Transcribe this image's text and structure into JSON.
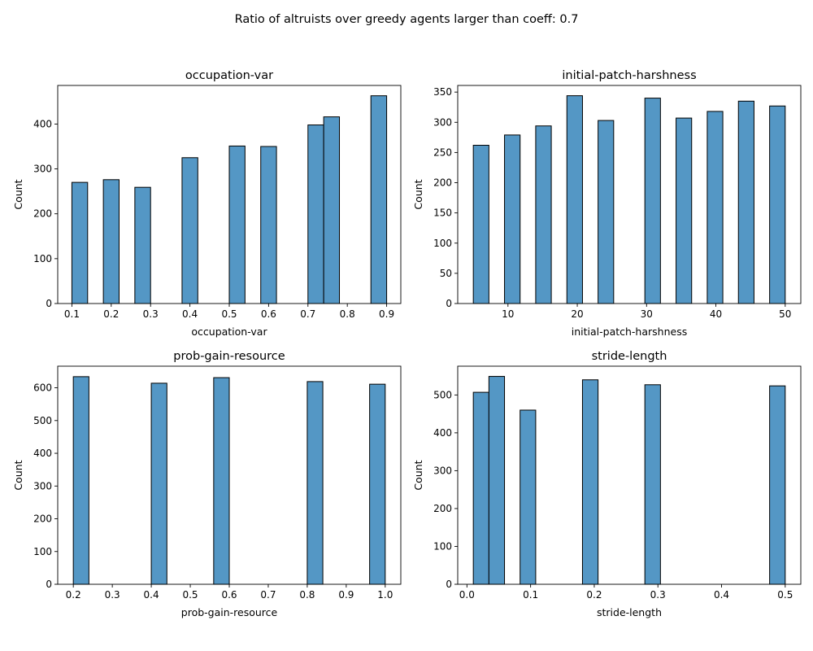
{
  "figure": {
    "suptitle": "Ratio of altruists over greedy agents larger than coeff: 0.7"
  },
  "bar_color": "#5497c5",
  "edge_color": "#000000",
  "chart_data": [
    {
      "type": "bar",
      "title": "occupation-var",
      "xlabel": "occupation-var",
      "ylabel": "Count",
      "xlim": [
        0.064,
        0.936
      ],
      "ylim": [
        0,
        486
      ],
      "xticks": [
        0.1,
        0.2,
        0.3,
        0.4,
        0.5,
        0.6,
        0.7,
        0.8,
        0.9
      ],
      "xtick_labels": [
        "0.1",
        "0.2",
        "0.3",
        "0.4",
        "0.5",
        "0.6",
        "0.7",
        "0.8",
        "0.9"
      ],
      "yticks": [
        0,
        100,
        200,
        300,
        400
      ],
      "ytick_labels": [
        "0",
        "100",
        "200",
        "300",
        "400"
      ],
      "bins": [
        {
          "x0": 0.1,
          "x1": 0.14,
          "count": 270
        },
        {
          "x0": 0.18,
          "x1": 0.22,
          "count": 276
        },
        {
          "x0": 0.26,
          "x1": 0.3,
          "count": 259
        },
        {
          "x0": 0.38,
          "x1": 0.42,
          "count": 325
        },
        {
          "x0": 0.5,
          "x1": 0.54,
          "count": 351
        },
        {
          "x0": 0.58,
          "x1": 0.62,
          "count": 350
        },
        {
          "x0": 0.7,
          "x1": 0.74,
          "count": 398
        },
        {
          "x0": 0.74,
          "x1": 0.78,
          "count": 416
        },
        {
          "x0": 0.86,
          "x1": 0.9,
          "count": 463
        }
      ]
    },
    {
      "type": "bar",
      "title": "initial-patch-harshness",
      "xlabel": "initial-patch-harshness",
      "ylabel": "Count",
      "xlim": [
        2.75,
        52.25
      ],
      "ylim": [
        0,
        361
      ],
      "xticks": [
        10,
        20,
        30,
        40,
        50
      ],
      "xtick_labels": [
        "10",
        "20",
        "30",
        "40",
        "50"
      ],
      "yticks": [
        0,
        50,
        100,
        150,
        200,
        250,
        300,
        350
      ],
      "ytick_labels": [
        "0",
        "50",
        "100",
        "150",
        "200",
        "250",
        "300",
        "350"
      ],
      "bins": [
        {
          "x0": 5.0,
          "x1": 7.25,
          "count": 262
        },
        {
          "x0": 9.5,
          "x1": 11.75,
          "count": 279
        },
        {
          "x0": 14.0,
          "x1": 16.25,
          "count": 294
        },
        {
          "x0": 18.5,
          "x1": 20.75,
          "count": 344
        },
        {
          "x0": 23.0,
          "x1": 25.25,
          "count": 303
        },
        {
          "x0": 29.75,
          "x1": 32.0,
          "count": 340
        },
        {
          "x0": 34.25,
          "x1": 36.5,
          "count": 307
        },
        {
          "x0": 38.75,
          "x1": 41.0,
          "count": 318
        },
        {
          "x0": 43.25,
          "x1": 45.5,
          "count": 335
        },
        {
          "x0": 47.75,
          "x1": 50.0,
          "count": 327
        }
      ]
    },
    {
      "type": "bar",
      "title": "prob-gain-resource",
      "xlabel": "prob-gain-resource",
      "ylabel": "Count",
      "xlim": [
        0.16,
        1.04
      ],
      "ylim": [
        0,
        666
      ],
      "xticks": [
        0.2,
        0.3,
        0.4,
        0.5,
        0.6,
        0.7,
        0.8,
        0.9,
        1.0
      ],
      "xtick_labels": [
        "0.2",
        "0.3",
        "0.4",
        "0.5",
        "0.6",
        "0.7",
        "0.8",
        "0.9",
        "1.0"
      ],
      "yticks": [
        0,
        100,
        200,
        300,
        400,
        500,
        600
      ],
      "ytick_labels": [
        "0",
        "100",
        "200",
        "300",
        "400",
        "500",
        "600"
      ],
      "bins": [
        {
          "x0": 0.2,
          "x1": 0.24,
          "count": 634
        },
        {
          "x0": 0.4,
          "x1": 0.44,
          "count": 614
        },
        {
          "x0": 0.56,
          "x1": 0.6,
          "count": 631
        },
        {
          "x0": 0.8,
          "x1": 0.84,
          "count": 619
        },
        {
          "x0": 0.96,
          "x1": 1.0,
          "count": 611
        }
      ]
    },
    {
      "type": "bar",
      "title": "stride-length",
      "xlabel": "stride-length",
      "ylabel": "Count",
      "xlim": [
        -0.0145,
        0.5245
      ],
      "ylim": [
        0,
        576
      ],
      "xticks": [
        0.0,
        0.1,
        0.2,
        0.3,
        0.4,
        0.5
      ],
      "xtick_labels": [
        "0.0",
        "0.1",
        "0.2",
        "0.3",
        "0.4",
        "0.5"
      ],
      "yticks": [
        0,
        100,
        200,
        300,
        400,
        500
      ],
      "ytick_labels": [
        "0",
        "100",
        "200",
        "300",
        "400",
        "500"
      ],
      "bins": [
        {
          "x0": 0.01,
          "x1": 0.0345,
          "count": 507
        },
        {
          "x0": 0.0345,
          "x1": 0.059,
          "count": 549
        },
        {
          "x0": 0.0835,
          "x1": 0.108,
          "count": 460
        },
        {
          "x0": 0.1815,
          "x1": 0.206,
          "count": 540
        },
        {
          "x0": 0.2795,
          "x1": 0.304,
          "count": 527
        },
        {
          "x0": 0.4755,
          "x1": 0.5,
          "count": 524
        }
      ]
    }
  ]
}
